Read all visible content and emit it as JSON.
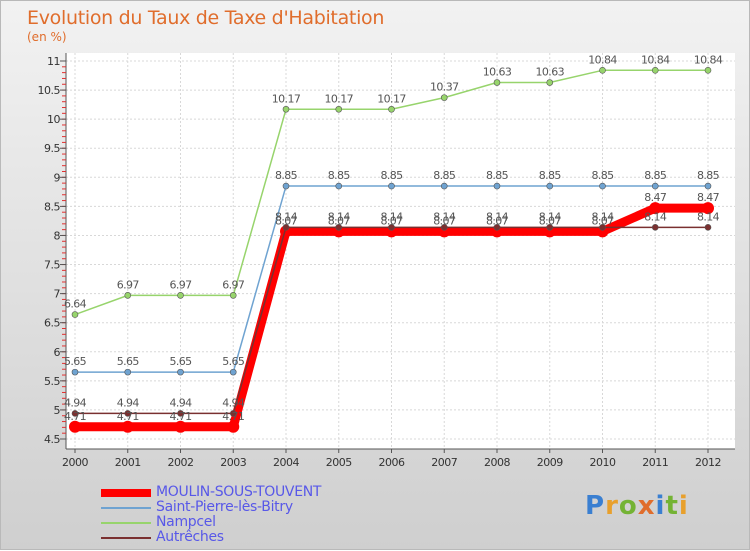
{
  "title": "Evolution du Taux de Taxe d'Habitation",
  "subtitle": "(en %)",
  "logo": {
    "letters": [
      "P",
      "r",
      "o",
      "x",
      "i",
      "t",
      "i"
    ],
    "colors": [
      "#3a7fd1",
      "#e8a02c",
      "#74b334",
      "#e06d2c",
      "#3a7fd1",
      "#74b334",
      "#e8a02c"
    ]
  },
  "chart_data": {
    "type": "line",
    "title": "Evolution du Taux de Taxe d'Habitation",
    "ylabel": "(en %)",
    "x": [
      "2000",
      "2001",
      "2002",
      "2003",
      "2004",
      "2005",
      "2006",
      "2007",
      "2008",
      "2009",
      "2010",
      "2011",
      "2012"
    ],
    "ylim": [
      4.5,
      11
    ],
    "yticks": [
      "4.5",
      "5",
      "5.5",
      "6",
      "6.5",
      "7",
      "7.5",
      "8",
      "8.5",
      "9",
      "9.5",
      "10",
      "10.5",
      "11"
    ],
    "grid": true,
    "legend_position": "bottom-left",
    "series": [
      {
        "name": "MOULIN-SOUS-TOUVENT",
        "color": "#ff0000",
        "values": [
          4.71,
          4.71,
          4.71,
          4.71,
          8.07,
          8.07,
          8.07,
          8.07,
          8.07,
          8.07,
          8.07,
          8.47,
          8.47
        ],
        "labels": [
          "4.71",
          "4.71",
          "4.71",
          "4.71",
          "8.07",
          "8.07",
          "8.07",
          "8.07",
          "8.07",
          "8.07",
          "8.07",
          "8.47",
          "8.47"
        ]
      },
      {
        "name": "Saint-Pierre-lès-Bitry",
        "color": "#6fa3d1",
        "values": [
          5.65,
          5.65,
          5.65,
          5.65,
          8.85,
          8.85,
          8.85,
          8.85,
          8.85,
          8.85,
          8.85,
          8.85,
          8.85
        ],
        "labels": [
          "5.65",
          "5.65",
          "5.65",
          "5.65",
          "8.85",
          "8.85",
          "8.85",
          "8.85",
          "8.85",
          "8.85",
          "8.85",
          "8.85",
          "8.85"
        ]
      },
      {
        "name": "Nampcel",
        "color": "#97d46c",
        "values": [
          6.64,
          6.97,
          6.97,
          6.97,
          10.17,
          10.17,
          10.17,
          10.37,
          10.63,
          10.63,
          10.84,
          10.84,
          10.84
        ],
        "labels": [
          "6.64",
          "6.97",
          "6.97",
          "6.97",
          "10.17",
          "10.17",
          "10.17",
          "10.37",
          "10.63",
          "10.63",
          "10.84",
          "10.84",
          "10.84"
        ]
      },
      {
        "name": "Autrêches",
        "color": "#7a3030",
        "values": [
          4.94,
          4.94,
          4.94,
          4.94,
          8.14,
          8.14,
          8.14,
          8.14,
          8.14,
          8.14,
          8.14,
          8.14,
          8.14
        ],
        "labels": [
          "4.94",
          "4.94",
          "4.94",
          "4.94",
          "8.14",
          "8.14",
          "8.14",
          "8.14",
          "8.14",
          "8.14",
          "8.14",
          "8.14",
          "8.14"
        ]
      }
    ]
  }
}
